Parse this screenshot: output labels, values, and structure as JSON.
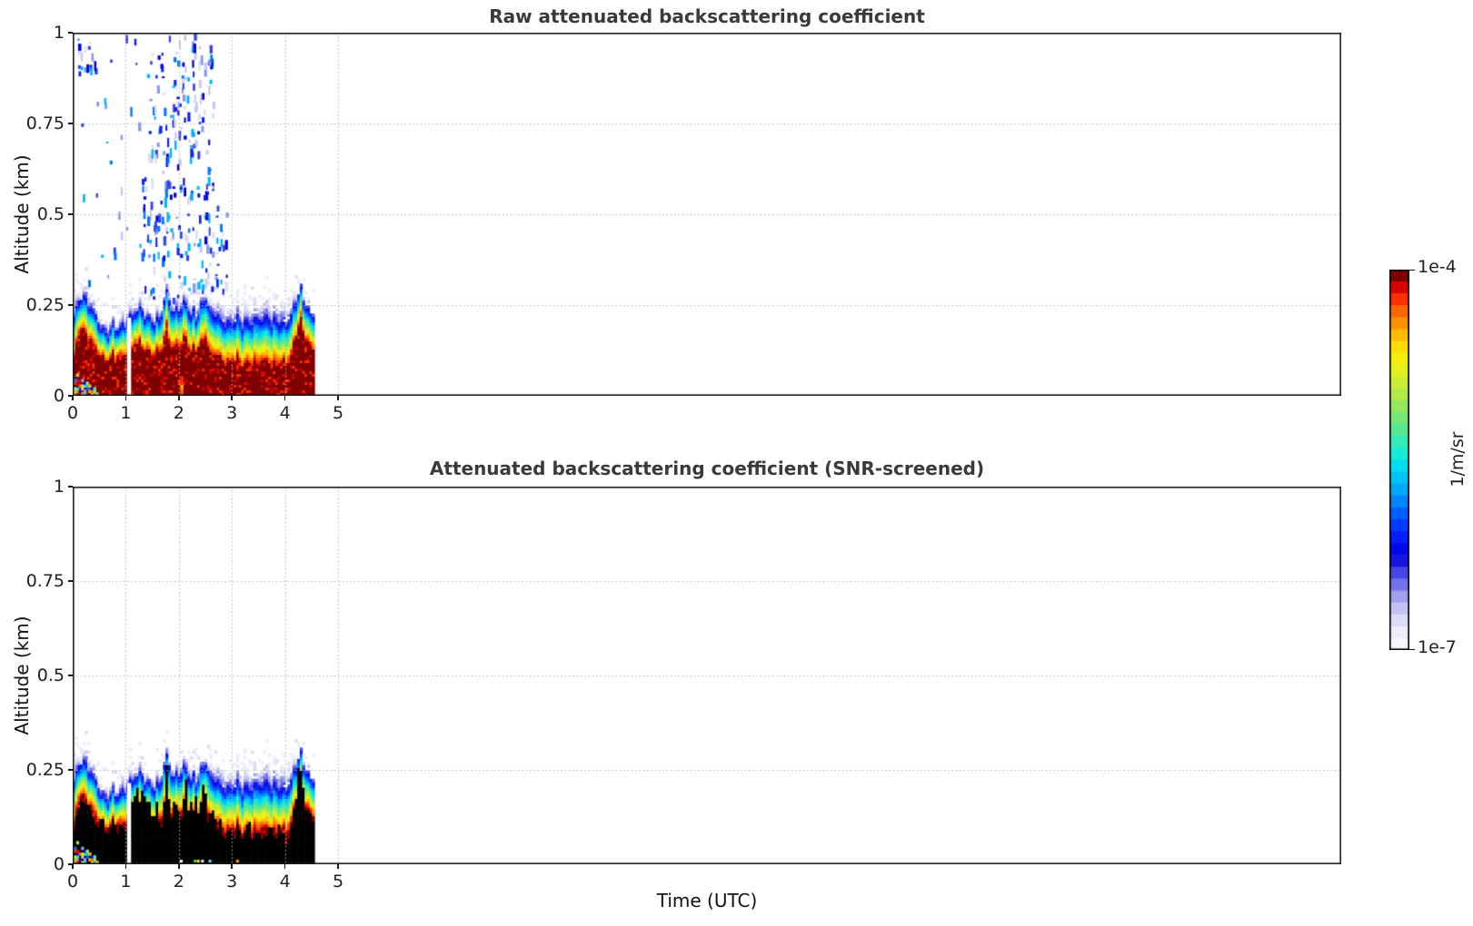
{
  "figure": {
    "background": "#ffffff"
  },
  "chart_data": {
    "type": "heatmap",
    "xlabel": "Time (UTC)",
    "ylabel": "Altitude (km)",
    "xlim": [
      0,
      23.9
    ],
    "ylim": [
      0,
      1
    ],
    "x_ticks": [
      0,
      1,
      2,
      3,
      4,
      5
    ],
    "x_tick_labels": [
      "0",
      "1",
      "2",
      "3",
      "4",
      "5"
    ],
    "y_ticks": [
      0,
      0.25,
      0.5,
      0.75,
      1
    ],
    "y_tick_labels": [
      "0",
      "0.25",
      "0.5",
      "0.75",
      "1"
    ],
    "y_gridlines": [
      0.25,
      0.5,
      0.75
    ],
    "x_gridlines": [
      1,
      2,
      3,
      4,
      5
    ],
    "grid_color": "#b4b4b4",
    "spine_color": "#1a1a1a",
    "background_color": "#ffffff",
    "panels": [
      {
        "title": "Raw attenuated backscattering coefficient",
        "black_core": false,
        "show_aloft_speckles": true,
        "core_color": "#7f0000"
      },
      {
        "title": "Attenuated backscattering coefficient (SNR-screened)",
        "black_core": true,
        "show_aloft_speckles": false,
        "core_color": "#000000"
      }
    ],
    "colorbar": {
      "max_label": "1e-4",
      "min_label": "1e-7",
      "unit_label": "1/m/sr",
      "levels": 32,
      "stops": [
        [
          0.0,
          "#f6f6fd"
        ],
        [
          0.04,
          "#e9e9fa"
        ],
        [
          0.08,
          "#d2d2f5"
        ],
        [
          0.12,
          "#ababef"
        ],
        [
          0.16,
          "#7575e9"
        ],
        [
          0.2,
          "#3d3de4"
        ],
        [
          0.24,
          "#0000df"
        ],
        [
          0.3,
          "#0022ff"
        ],
        [
          0.36,
          "#0066ff"
        ],
        [
          0.42,
          "#00aaff"
        ],
        [
          0.48,
          "#00dcf2"
        ],
        [
          0.53,
          "#20f0cd"
        ],
        [
          0.58,
          "#55e894"
        ],
        [
          0.64,
          "#8de65e"
        ],
        [
          0.7,
          "#c3ee3a"
        ],
        [
          0.76,
          "#eff312"
        ],
        [
          0.8,
          "#ffe400"
        ],
        [
          0.85,
          "#ffae00"
        ],
        [
          0.9,
          "#ff6a00"
        ],
        [
          0.94,
          "#ff2600"
        ],
        [
          0.97,
          "#d60000"
        ],
        [
          1.0,
          "#7f0000"
        ]
      ]
    },
    "data_time_end": 4.53,
    "gap": {
      "t0": 1.025,
      "t1": 1.1,
      "top_alt": 0.215
    },
    "profiles": {
      "times": [
        0,
        0.1,
        0.15,
        0.2,
        0.3,
        0.4,
        0.5,
        0.6,
        0.7,
        0.8,
        0.9,
        1.0,
        1.1,
        1.2,
        1.3,
        1.4,
        1.5,
        1.6,
        1.7,
        1.75,
        1.8,
        1.9,
        2.0,
        2.1,
        2.2,
        2.3,
        2.4,
        2.5,
        2.6,
        2.8,
        3.0,
        3.2,
        3.4,
        3.6,
        3.8,
        4.0,
        4.1,
        4.2,
        4.28,
        4.35,
        4.45,
        4.53
      ],
      "layer_top": [
        0.21,
        0.26,
        0.28,
        0.25,
        0.24,
        0.21,
        0.18,
        0.17,
        0.18,
        0.17,
        0.18,
        0.2,
        0.22,
        0.23,
        0.22,
        0.21,
        0.19,
        0.2,
        0.26,
        0.28,
        0.26,
        0.22,
        0.23,
        0.25,
        0.22,
        0.21,
        0.25,
        0.26,
        0.22,
        0.2,
        0.2,
        0.195,
        0.2,
        0.2,
        0.195,
        0.2,
        0.21,
        0.26,
        0.29,
        0.24,
        0.22,
        0.21
      ],
      "core_top": [
        0.1,
        0.17,
        0.2,
        0.16,
        0.15,
        0.12,
        0.1,
        0.095,
        0.1,
        0.095,
        0.1,
        0.11,
        0.13,
        0.14,
        0.12,
        0.12,
        0.1,
        0.11,
        0.16,
        0.18,
        0.15,
        0.12,
        0.13,
        0.15,
        0.12,
        0.12,
        0.14,
        0.15,
        0.11,
        0.095,
        0.09,
        0.085,
        0.085,
        0.085,
        0.085,
        0.09,
        0.1,
        0.17,
        0.2,
        0.15,
        0.13,
        0.12
      ],
      "noise_top": [
        0.24,
        0.29,
        0.3,
        0.28,
        0.27,
        0.24,
        0.21,
        0.2,
        0.21,
        0.2,
        0.22,
        0.23,
        0.25,
        0.26,
        0.25,
        0.24,
        0.22,
        0.24,
        0.29,
        0.3,
        0.28,
        0.25,
        0.26,
        0.27,
        0.25,
        0.26,
        0.28,
        0.28,
        0.26,
        0.25,
        0.25,
        0.25,
        0.26,
        0.26,
        0.25,
        0.25,
        0.25,
        0.29,
        0.31,
        0.27,
        0.25,
        0.24
      ]
    },
    "panel1_speckle_clusters": [
      {
        "t0": 1.35,
        "t1": 2.65,
        "a0": 0.55,
        "a1": 1.0,
        "count": 150
      },
      {
        "t0": 1.25,
        "t1": 2.9,
        "a0": 0.27,
        "a1": 0.58,
        "count": 130
      },
      {
        "t0": 0.1,
        "t1": 1.35,
        "a0": 0.3,
        "a1": 1.0,
        "count": 28
      },
      {
        "t0": 0.08,
        "t1": 0.45,
        "a0": 0.9,
        "a1": 1.0,
        "count": 18
      }
    ],
    "speckle_colors": [
      "#0000dd",
      "#1122ee",
      "#3344ee",
      "#0077ff",
      "#00b4ff",
      "#8899ee",
      "#c8c8f4",
      "#dcdcf8"
    ],
    "panel2_black_spikes": [
      [
        1.08,
        0.075
      ],
      [
        1.13,
        0.06
      ],
      [
        1.2,
        0.07
      ],
      [
        1.28,
        0.08
      ],
      [
        1.35,
        0.09
      ],
      [
        1.44,
        0.06
      ],
      [
        1.55,
        0.05
      ],
      [
        1.76,
        0.09
      ],
      [
        1.9,
        0.05
      ],
      [
        2.12,
        0.08
      ],
      [
        2.2,
        0.06
      ],
      [
        2.3,
        0.06
      ],
      [
        2.45,
        0.09
      ],
      [
        2.6,
        0.04
      ],
      [
        3.3,
        0.03
      ],
      [
        3.7,
        0.03
      ],
      [
        4.24,
        0.08
      ],
      [
        4.3,
        0.06
      ]
    ],
    "panel2_bottom_dots": {
      "times": [
        2.02,
        2.28,
        2.34,
        2.42,
        2.56,
        3.08
      ],
      "colors": [
        "#ffffff",
        "#44dd55",
        "#ffee00",
        "#eeeeee",
        "#66e0ff",
        "#ffaa00"
      ]
    },
    "surface_speckles": {
      "t0": 0.02,
      "t1": 0.48,
      "max_alt": 0.062
    },
    "panel1_surface_streak": {
      "t": 2.03,
      "alt": 0.048
    },
    "seed": 7
  }
}
